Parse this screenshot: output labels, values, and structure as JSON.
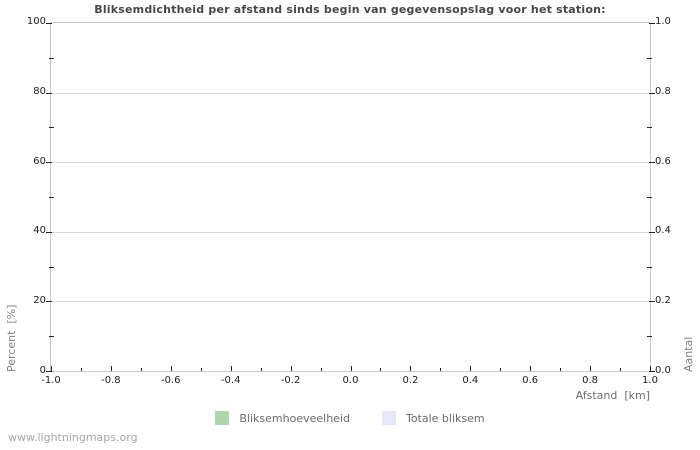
{
  "chart_data": {
    "type": "bar",
    "title": "Bliksemdichtheid per afstand sinds begin van gegevensopslag voor het station:",
    "xlabel": "Afstand  [km]",
    "ylabel_left": "Percent  [%]",
    "ylabel_right": "Aantal",
    "xlim": [
      -1.0,
      1.0
    ],
    "ylim_left": [
      0,
      100
    ],
    "ylim_right": [
      0.0,
      1.0
    ],
    "x_ticks": [
      "-1.0",
      "-0.8",
      "-0.6",
      "-0.4",
      "-0.2",
      "0.0",
      "0.2",
      "0.4",
      "0.6",
      "0.8",
      "1.0"
    ],
    "y_ticks_left": [
      "0",
      "20",
      "40",
      "60",
      "80",
      "100"
    ],
    "y_ticks_right": [
      "0.0",
      "0.2",
      "0.4",
      "0.6",
      "0.8",
      "1.0"
    ],
    "grid": "horizontal-major",
    "legend_position": "bottom-center",
    "series": [
      {
        "name": "Bliksemhoeveelheid",
        "color": "#aed6ab",
        "values": []
      },
      {
        "name": "Totale bliksem",
        "color": "#e7e7f8",
        "values": []
      }
    ]
  },
  "colors": {
    "grid": "#d9d9d9",
    "plot_border": "#c9c9c9",
    "tick_mark": "#222222",
    "tick_label": "#1c1c1c",
    "title_text": "#474747",
    "axis_label_text": "#808080",
    "legend_text": "#6b6b6b",
    "watermark_text": "#a6a6a6"
  },
  "footer": {
    "watermark": "www.lightningmaps.org"
  }
}
